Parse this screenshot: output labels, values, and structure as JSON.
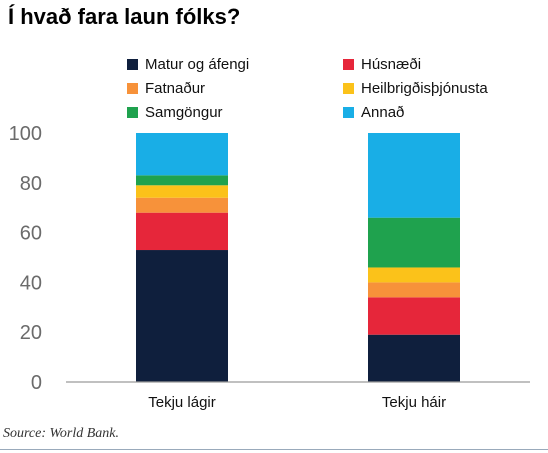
{
  "chart_data": {
    "type": "bar",
    "stacked": true,
    "title": "Í hvað fara laun fólks?",
    "xlabel": "",
    "ylabel": "",
    "ylim": [
      0,
      100
    ],
    "yticks": [
      0,
      20,
      40,
      60,
      80,
      100
    ],
    "grid": false,
    "legend_position": "top",
    "categories": [
      "Tekju lágir",
      "Tekju háir"
    ],
    "series": [
      {
        "name": "Matur og áfengi",
        "color": "#0f1f3d",
        "values": [
          53,
          19
        ]
      },
      {
        "name": "Húsnæði",
        "color": "#e6263a",
        "values": [
          15,
          15
        ]
      },
      {
        "name": "Fatnaður",
        "color": "#f7923a",
        "values": [
          6,
          6
        ]
      },
      {
        "name": "Heilbrigðisþjónusta",
        "color": "#fbc21a",
        "values": [
          5,
          6
        ]
      },
      {
        "name": "Samgöngur",
        "color": "#1fa24e",
        "values": [
          4,
          20
        ]
      },
      {
        "name": "Annað",
        "color": "#19aee6",
        "values": [
          17,
          34
        ]
      }
    ],
    "source": "Source: World Bank."
  }
}
